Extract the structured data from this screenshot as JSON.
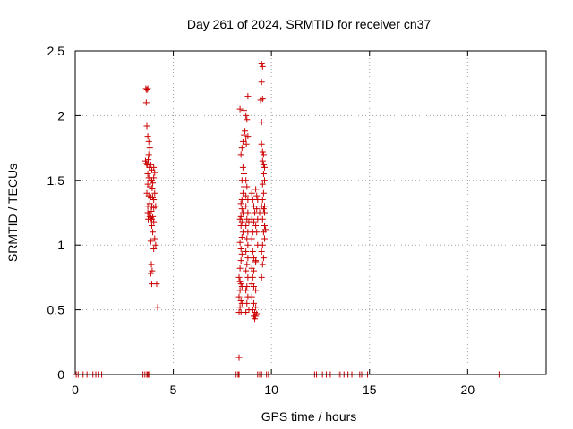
{
  "chart_data": {
    "type": "scatter",
    "title": "Day 261 of 2024, SRMTID for receiver cn37",
    "xlabel": "GPS time / hours",
    "ylabel": "SRMTID / TECUs",
    "xlim": [
      0,
      24
    ],
    "ylim": [
      0,
      2.5
    ],
    "xticks": [
      0,
      5,
      10,
      15,
      20
    ],
    "yticks": [
      0,
      0.5,
      1,
      1.5,
      2,
      2.5
    ],
    "ytick_labels": [
      "0",
      "0.5",
      "1",
      "1.5",
      "2",
      "2.5"
    ],
    "grid": true,
    "marker": "plus",
    "color": "#cc0000",
    "series": [
      {
        "points": [
          [
            0.05,
            0
          ],
          [
            0.15,
            0
          ],
          [
            0.4,
            0
          ],
          [
            0.6,
            0
          ],
          [
            0.75,
            0
          ],
          [
            0.9,
            0
          ],
          [
            1.05,
            0
          ],
          [
            1.2,
            0
          ],
          [
            1.35,
            0
          ],
          [
            3.45,
            0
          ],
          [
            3.55,
            0
          ],
          [
            3.65,
            0
          ],
          [
            3.7,
            0
          ],
          [
            3.75,
            0
          ],
          [
            8.2,
            0
          ],
          [
            8.3,
            0
          ],
          [
            8.35,
            0
          ],
          [
            9.3,
            0
          ],
          [
            9.4,
            0
          ],
          [
            9.5,
            0
          ],
          [
            9.75,
            0
          ],
          [
            9.85,
            0
          ],
          [
            12.2,
            0
          ],
          [
            12.3,
            0
          ],
          [
            12.6,
            0
          ],
          [
            12.8,
            0
          ],
          [
            13.0,
            0
          ],
          [
            13.4,
            0
          ],
          [
            13.5,
            0
          ],
          [
            13.7,
            0
          ],
          [
            13.9,
            0
          ],
          [
            14.1,
            0
          ],
          [
            14.5,
            0
          ],
          [
            14.6,
            0
          ],
          [
            14.9,
            0
          ],
          [
            21.6,
            0
          ],
          [
            3.6,
            2.21
          ],
          [
            3.65,
            2.2
          ],
          [
            3.7,
            2.21
          ],
          [
            3.62,
            2.1
          ],
          [
            3.65,
            1.92
          ],
          [
            3.7,
            1.84
          ],
          [
            3.75,
            1.8
          ],
          [
            3.8,
            1.75
          ],
          [
            3.75,
            1.7
          ],
          [
            3.58,
            1.65
          ],
          [
            3.62,
            1.63
          ],
          [
            3.68,
            1.62
          ],
          [
            3.72,
            1.66
          ],
          [
            3.78,
            1.6
          ],
          [
            3.85,
            1.62
          ],
          [
            3.9,
            1.58
          ],
          [
            4.0,
            1.6
          ],
          [
            4.05,
            1.56
          ],
          [
            3.7,
            1.55
          ],
          [
            3.75,
            1.52
          ],
          [
            3.82,
            1.5
          ],
          [
            3.9,
            1.5
          ],
          [
            3.95,
            1.48
          ],
          [
            4.0,
            1.52
          ],
          [
            3.7,
            1.47
          ],
          [
            3.8,
            1.45
          ],
          [
            3.92,
            1.44
          ],
          [
            3.65,
            1.4
          ],
          [
            3.75,
            1.38
          ],
          [
            3.85,
            1.37
          ],
          [
            3.95,
            1.37
          ],
          [
            4.0,
            1.35
          ],
          [
            4.05,
            1.4
          ],
          [
            3.7,
            1.3
          ],
          [
            3.8,
            1.32
          ],
          [
            3.9,
            1.3
          ],
          [
            4.0,
            1.29
          ],
          [
            4.1,
            1.3
          ],
          [
            3.7,
            1.25
          ],
          [
            3.75,
            1.24
          ],
          [
            3.8,
            1.22
          ],
          [
            3.85,
            1.21
          ],
          [
            3.9,
            1.2
          ],
          [
            3.95,
            1.22
          ],
          [
            4.0,
            1.18
          ],
          [
            3.72,
            1.2
          ],
          [
            3.88,
            1.26
          ],
          [
            3.9,
            1.15
          ],
          [
            3.95,
            1.1
          ],
          [
            4.05,
            1.05
          ],
          [
            4.1,
            1.0
          ],
          [
            3.85,
            1.03
          ],
          [
            4.0,
            0.97
          ],
          [
            3.88,
            0.85
          ],
          [
            3.92,
            0.8
          ],
          [
            3.85,
            0.78
          ],
          [
            3.9,
            0.7
          ],
          [
            4.15,
            0.7
          ],
          [
            4.2,
            0.52
          ],
          [
            8.4,
            2.05
          ],
          [
            8.6,
            2.04
          ],
          [
            8.7,
            2.0
          ],
          [
            8.75,
            1.97
          ],
          [
            8.65,
            1.88
          ],
          [
            8.6,
            1.85
          ],
          [
            8.7,
            1.82
          ],
          [
            8.8,
            1.84
          ],
          [
            8.55,
            1.8
          ],
          [
            8.5,
            1.75
          ],
          [
            8.45,
            1.7
          ],
          [
            8.55,
            1.6
          ],
          [
            8.6,
            1.55
          ],
          [
            8.5,
            1.5
          ],
          [
            8.6,
            1.45
          ],
          [
            8.55,
            1.4
          ],
          [
            8.5,
            1.35
          ],
          [
            8.45,
            1.32
          ],
          [
            8.5,
            1.28
          ],
          [
            8.55,
            1.25
          ],
          [
            8.45,
            1.22
          ],
          [
            8.4,
            1.2
          ],
          [
            8.5,
            1.18
          ],
          [
            8.45,
            1.15
          ],
          [
            8.55,
            1.1
          ],
          [
            8.5,
            1.06
          ],
          [
            8.4,
            1.02
          ],
          [
            8.45,
            0.97
          ],
          [
            8.5,
            0.93
          ],
          [
            8.45,
            0.88
          ],
          [
            8.4,
            0.82
          ],
          [
            8.35,
            0.75
          ],
          [
            8.4,
            0.72
          ],
          [
            8.45,
            0.7
          ],
          [
            8.5,
            0.68
          ],
          [
            8.4,
            0.65
          ],
          [
            8.35,
            0.6
          ],
          [
            8.45,
            0.57
          ],
          [
            8.5,
            0.55
          ],
          [
            8.4,
            0.52
          ],
          [
            8.35,
            0.48
          ],
          [
            8.45,
            0.48
          ],
          [
            8.35,
            0.13
          ],
          [
            8.7,
            1.5
          ],
          [
            8.75,
            1.45
          ],
          [
            8.7,
            1.38
          ],
          [
            8.8,
            1.35
          ],
          [
            8.7,
            1.3
          ],
          [
            8.8,
            1.25
          ],
          [
            8.75,
            1.2
          ],
          [
            8.85,
            1.18
          ],
          [
            8.7,
            1.15
          ],
          [
            8.8,
            1.1
          ],
          [
            8.75,
            1.05
          ],
          [
            8.8,
            1.0
          ],
          [
            8.7,
            0.95
          ],
          [
            8.8,
            0.9
          ],
          [
            8.75,
            0.85
          ],
          [
            8.7,
            0.8
          ],
          [
            8.8,
            0.75
          ],
          [
            8.75,
            0.68
          ],
          [
            8.7,
            0.65
          ],
          [
            8.8,
            0.6
          ],
          [
            8.75,
            0.55
          ],
          [
            8.85,
            0.5
          ],
          [
            8.7,
            0.48
          ],
          [
            8.8,
            2.15
          ],
          [
            8.72,
            1.78
          ],
          [
            9.0,
            1.4
          ],
          [
            9.05,
            1.35
          ],
          [
            9.1,
            1.3
          ],
          [
            9.15,
            1.25
          ],
          [
            9.0,
            1.2
          ],
          [
            9.1,
            1.18
          ],
          [
            9.2,
            1.15
          ],
          [
            9.05,
            1.1
          ],
          [
            9.0,
            1.05
          ],
          [
            9.05,
            0.95
          ],
          [
            9.1,
            0.9
          ],
          [
            9.2,
            0.88
          ],
          [
            9.0,
            0.82
          ],
          [
            9.1,
            0.8
          ],
          [
            9.05,
            0.75
          ],
          [
            9.0,
            0.7
          ],
          [
            9.1,
            0.68
          ],
          [
            9.2,
            0.65
          ],
          [
            9.0,
            0.6
          ],
          [
            9.1,
            0.55
          ],
          [
            9.2,
            0.52
          ],
          [
            9.05,
            0.5
          ],
          [
            9.15,
            0.48
          ],
          [
            9.25,
            0.47
          ],
          [
            9.1,
            0.45
          ],
          [
            9.2,
            0.45
          ],
          [
            9.15,
            0.43
          ],
          [
            9.2,
            1.43
          ],
          [
            9.25,
            1.38
          ],
          [
            9.3,
            1.35
          ],
          [
            9.25,
            1.28
          ],
          [
            9.3,
            1.2
          ],
          [
            9.25,
            1.1
          ],
          [
            9.3,
            1.0
          ],
          [
            9.2,
            0.87
          ],
          [
            9.5,
            2.4
          ],
          [
            9.55,
            2.38
          ],
          [
            9.5,
            2.26
          ],
          [
            9.55,
            2.13
          ],
          [
            9.45,
            2.12
          ],
          [
            9.5,
            1.95
          ],
          [
            9.5,
            1.78
          ],
          [
            9.55,
            1.72
          ],
          [
            9.6,
            1.7
          ],
          [
            9.55,
            1.65
          ],
          [
            9.6,
            1.62
          ],
          [
            9.65,
            1.6
          ],
          [
            9.6,
            1.55
          ],
          [
            9.65,
            1.5
          ],
          [
            9.55,
            1.47
          ],
          [
            9.6,
            1.4
          ],
          [
            9.55,
            1.35
          ],
          [
            9.5,
            1.3
          ],
          [
            9.6,
            1.28
          ],
          [
            9.65,
            1.25
          ],
          [
            9.55,
            1.2
          ],
          [
            9.65,
            1.15
          ],
          [
            9.7,
            1.12
          ],
          [
            9.6,
            1.1
          ],
          [
            9.65,
            1.05
          ],
          [
            9.55,
            1.0
          ],
          [
            9.5,
            0.95
          ],
          [
            9.6,
            0.9
          ],
          [
            9.55,
            0.85
          ],
          [
            9.5,
            0.75
          ],
          [
            9.65,
            1.3
          ],
          [
            9.4,
            1.25
          ]
        ]
      }
    ]
  }
}
